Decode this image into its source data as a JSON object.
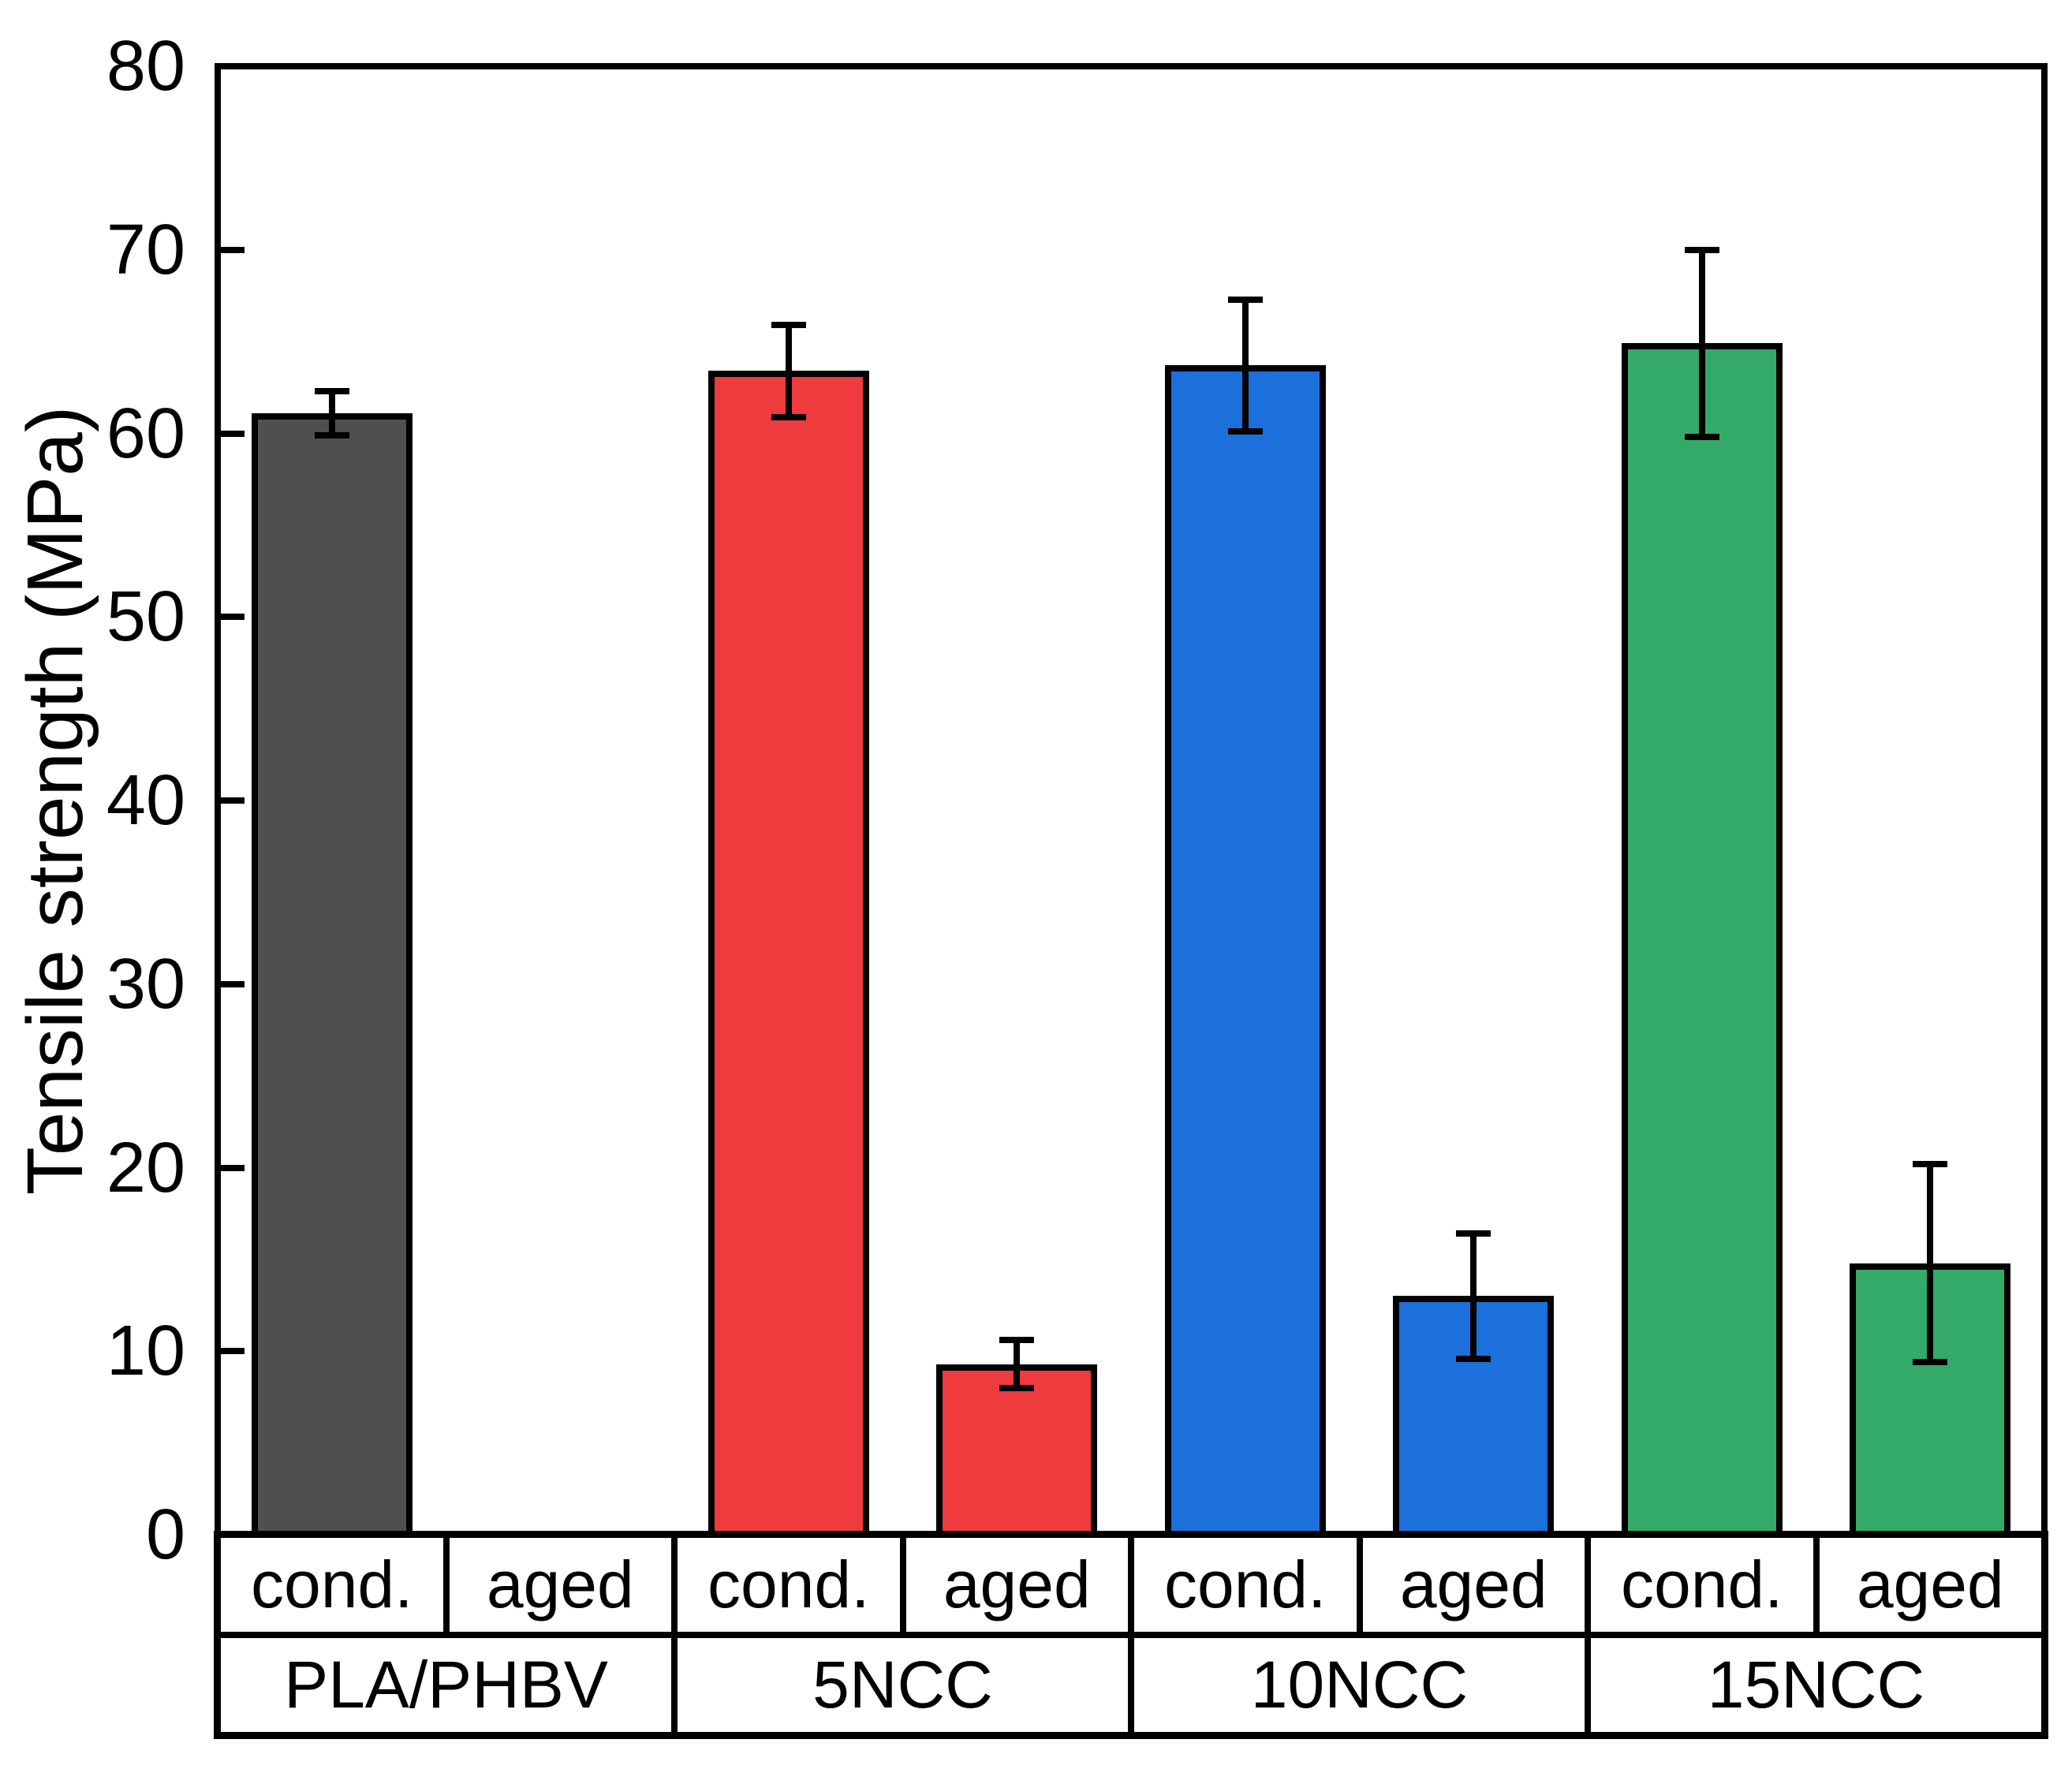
{
  "chart_data": {
    "type": "bar",
    "title": "",
    "ylabel": "Tensile strength (MPa)",
    "xlabel": "",
    "ylim": [
      0,
      80
    ],
    "ytick_step": 10,
    "yticks": [
      0,
      10,
      20,
      30,
      40,
      50,
      60,
      70,
      80
    ],
    "ytick_labels": [
      "0",
      "10",
      "20",
      "30",
      "40",
      "50",
      "60",
      "70",
      "80"
    ],
    "grid": false,
    "legend_position": "none",
    "background_color": "#ffffff",
    "frame_color": "#000000",
    "bar_outline_color": "#000000",
    "error_bar_color": "#000000",
    "groups": [
      {
        "label": "PLA/PHBV",
        "color": "#4f4f4f",
        "bars": [
          {
            "condition": "cond.",
            "value": 61.1,
            "error": 1.2
          },
          {
            "condition": "aged",
            "value": null,
            "error": null
          }
        ]
      },
      {
        "label": "5NCC",
        "color": "#ee3b3d",
        "bars": [
          {
            "condition": "cond.",
            "value": 63.4,
            "error": 2.5
          },
          {
            "condition": "aged",
            "value": 9.3,
            "error": 1.3
          }
        ]
      },
      {
        "label": "10NCC",
        "color": "#1b70dc",
        "bars": [
          {
            "condition": "cond.",
            "value": 63.7,
            "error": 3.6
          },
          {
            "condition": "aged",
            "value": 13.0,
            "error": 3.4
          }
        ]
      },
      {
        "label": "15NCC",
        "color": "#34aa68",
        "bars": [
          {
            "condition": "cond.",
            "value": 64.9,
            "error": 5.1
          },
          {
            "condition": "aged",
            "value": 14.8,
            "error": 5.4
          }
        ]
      }
    ]
  }
}
